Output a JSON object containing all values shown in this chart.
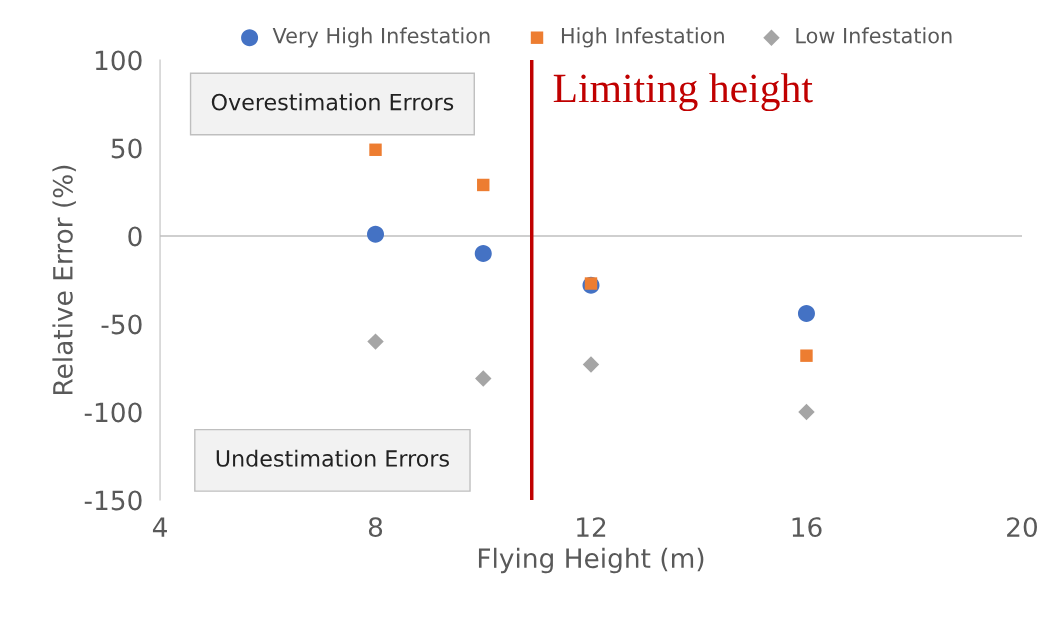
{
  "chart_data": {
    "type": "scatter",
    "xlabel": "Flying Height (m)",
    "ylabel": "Relative Error (%)",
    "x": [
      8,
      10,
      12,
      16
    ],
    "series": [
      {
        "name": "Very High Infestation",
        "color": "#4472c4",
        "marker": "circle",
        "values": [
          1,
          -10,
          -28,
          -44
        ]
      },
      {
        "name": "High Infestation",
        "color": "#ed7d31",
        "marker": "square",
        "values": [
          49,
          29,
          -27,
          -68
        ]
      },
      {
        "name": "Low Infestation",
        "color": "#a5a5a5",
        "marker": "diamond",
        "values": [
          -60,
          -81,
          -73,
          -100
        ]
      }
    ],
    "xlim": [
      4,
      20
    ],
    "xticks": [
      4,
      8,
      12,
      16,
      20
    ],
    "ylim": [
      -150,
      100
    ],
    "yticks": [
      -150,
      -100,
      -50,
      0,
      50,
      100
    ],
    "ref_lines": [
      {
        "axis": "y",
        "value": 0,
        "color": "#bfbfbf"
      },
      {
        "axis": "x",
        "value": 10.9,
        "label": "Limiting height",
        "color": "#c00000"
      }
    ],
    "annotations": [
      "Overestimation Errors",
      "Undestimation Errors"
    ],
    "legend": "top",
    "grid": false
  }
}
